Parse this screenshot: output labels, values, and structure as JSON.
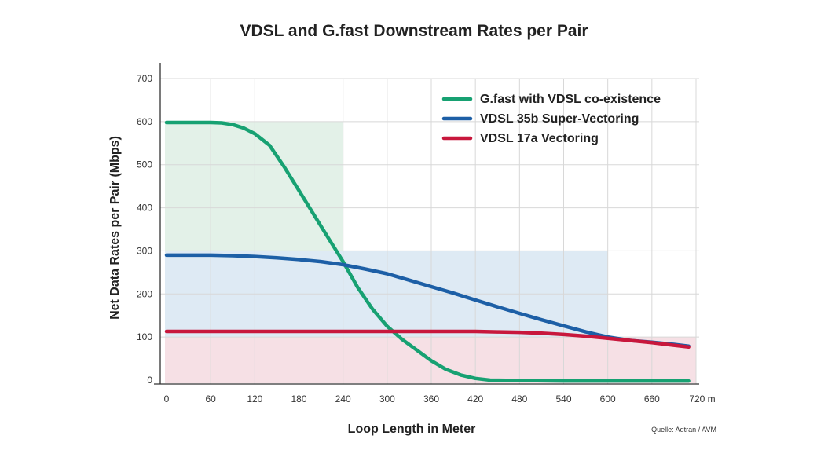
{
  "chart_data": {
    "type": "line",
    "title": "VDSL and G.fast Downstream Rates per Pair",
    "xlabel": "Loop Length in Meter",
    "ylabel": "Net Data Rates per Pair (Mbps)",
    "source": "Quelle: Adtran / AVM",
    "x_unit": "m",
    "xlim": [
      0,
      720
    ],
    "ylim": [
      0,
      700
    ],
    "x_ticks": [
      0,
      60,
      120,
      180,
      240,
      300,
      360,
      420,
      480,
      540,
      600,
      660,
      720
    ],
    "y_ticks": [
      0,
      100,
      200,
      300,
      400,
      500,
      600,
      700
    ],
    "grid": true,
    "legend_position": "top-right",
    "regions": [
      {
        "x": [
          0,
          240
        ],
        "y": [
          0,
          600
        ],
        "color": "#e3f1e8"
      },
      {
        "x": [
          0,
          600
        ],
        "y": [
          0,
          300
        ],
        "color": "#deeaf4"
      },
      {
        "x": [
          0,
          720
        ],
        "y": [
          0,
          100
        ],
        "color": "#f6e0e5"
      }
    ],
    "series": [
      {
        "name": "G.fast with VDSL co-existence",
        "color": "#17a172",
        "x": [
          0,
          30,
          60,
          75,
          90,
          105,
          120,
          140,
          160,
          180,
          200,
          220,
          240,
          260,
          280,
          300,
          320,
          340,
          360,
          380,
          400,
          420,
          440,
          480,
          540,
          600,
          660,
          710
        ],
        "y": [
          598,
          598,
          598,
          597,
          593,
          585,
          572,
          545,
          495,
          440,
          385,
          330,
          275,
          215,
          165,
          125,
          95,
          70,
          45,
          25,
          12,
          4,
          0,
          -1,
          -2,
          -2,
          -2,
          -2
        ]
      },
      {
        "name": "VDSL 35b Super-Vectoring",
        "color": "#1d5fa6",
        "x": [
          0,
          30,
          60,
          90,
          120,
          150,
          180,
          210,
          240,
          270,
          300,
          330,
          360,
          390,
          420,
          450,
          480,
          510,
          540,
          570,
          600,
          630,
          660,
          690,
          710
        ],
        "y": [
          290,
          290,
          290,
          289,
          287,
          284,
          280,
          275,
          268,
          258,
          247,
          232,
          217,
          202,
          186,
          170,
          155,
          140,
          126,
          112,
          100,
          92,
          88,
          83,
          79
        ]
      },
      {
        "name": "VDSL 17a Vectoring",
        "color": "#c8173c",
        "x": [
          0,
          60,
          120,
          180,
          240,
          300,
          360,
          420,
          450,
          480,
          510,
          540,
          570,
          600,
          630,
          660,
          690,
          710
        ],
        "y": [
          113,
          113,
          113,
          113,
          113,
          113,
          113,
          113,
          112,
          111,
          109,
          106,
          102,
          97,
          92,
          87,
          81,
          77
        ]
      }
    ]
  }
}
